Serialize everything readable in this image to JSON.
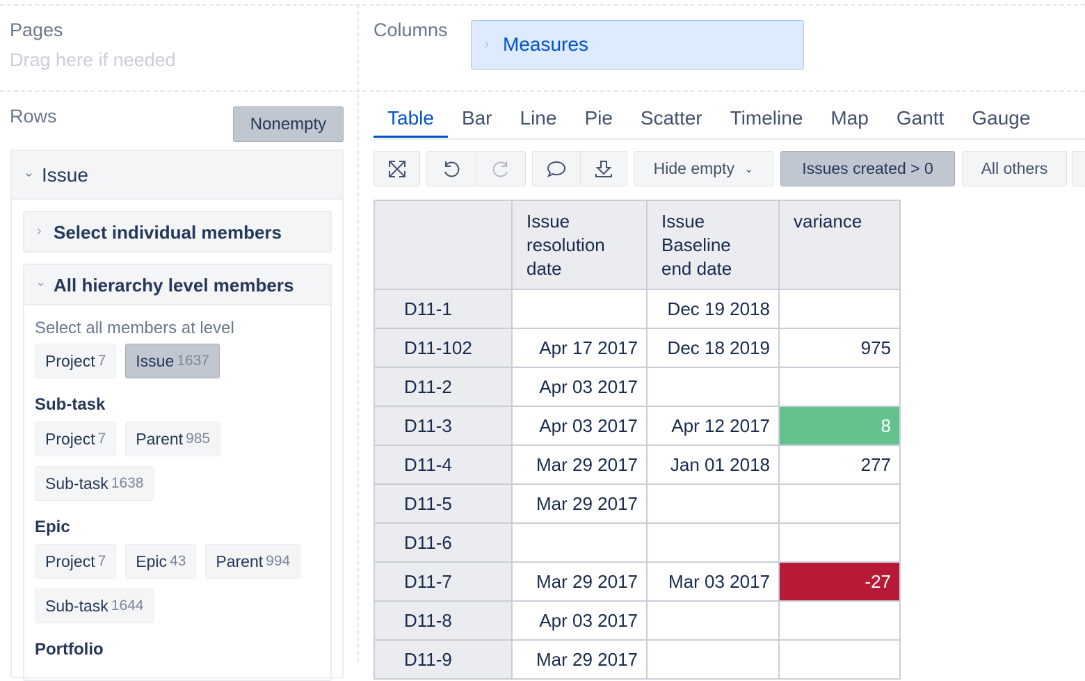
{
  "pages": {
    "label": "Pages",
    "hint": "Drag here if needed"
  },
  "columns": {
    "label": "Columns",
    "chip": "Measures"
  },
  "rows": {
    "label": "Rows",
    "button": "Nonempty",
    "dimension": "Issue",
    "select_individual": "Select individual members",
    "all_levels": "All hierarchy level members",
    "level_hint": "Select all members at level",
    "default_chips": [
      {
        "label": "Project",
        "count": 7
      },
      {
        "label": "Issue",
        "count": 1637,
        "selected": true
      }
    ],
    "groups": [
      {
        "title": "Sub-task",
        "chips": [
          {
            "label": "Project",
            "count": 7
          },
          {
            "label": "Parent",
            "count": 985
          },
          {
            "label": "Sub-task",
            "count": 1638
          }
        ]
      },
      {
        "title": "Epic",
        "chips": [
          {
            "label": "Project",
            "count": 7
          },
          {
            "label": "Epic",
            "count": 43
          },
          {
            "label": "Parent",
            "count": 994
          },
          {
            "label": "Sub-task",
            "count": 1644
          }
        ]
      },
      {
        "title": "Portfolio",
        "chips": []
      }
    ]
  },
  "tabs": {
    "items": [
      "Table",
      "Bar",
      "Line",
      "Pie",
      "Scatter",
      "Timeline",
      "Map",
      "Gantt",
      "Gauge"
    ],
    "active": "Table"
  },
  "toolbar": {
    "buttons": [
      {
        "label": "Hide empty",
        "dropdown": true
      },
      {
        "label": "Issues created > 0",
        "selected": true
      },
      {
        "label": "All others"
      }
    ]
  },
  "table": {
    "headers": [
      "Issue resolution date",
      "Issue Baseline end date",
      "variance"
    ],
    "rows": [
      {
        "issue": "D11-1",
        "cells": [
          null,
          "Dec 19 2018",
          null
        ]
      },
      {
        "issue": "D11-102",
        "cells": [
          "Apr 17 2017",
          "Dec 18 2019",
          975
        ]
      },
      {
        "issue": "D11-2",
        "cells": [
          "Apr 03 2017",
          null,
          null
        ]
      },
      {
        "issue": "D11-3",
        "cells": [
          "Apr 03 2017",
          "Apr 12 2017",
          8
        ],
        "highlight": "#63c28d"
      },
      {
        "issue": "D11-4",
        "cells": [
          "Mar 29 2017",
          "Jan 01 2018",
          277
        ]
      },
      {
        "issue": "D11-5",
        "cells": [
          "Mar 29 2017",
          null,
          null
        ]
      },
      {
        "issue": "D11-6",
        "cells": [
          null,
          null,
          null
        ]
      },
      {
        "issue": "D11-7",
        "cells": [
          "Mar 29 2017",
          "Mar 03 2017",
          -27
        ],
        "highlight": "#b71a37"
      },
      {
        "issue": "D11-8",
        "cells": [
          "Apr 03 2017",
          null,
          null
        ]
      },
      {
        "issue": "D11-9",
        "cells": [
          "Mar 29 2017",
          null,
          null
        ]
      }
    ]
  }
}
